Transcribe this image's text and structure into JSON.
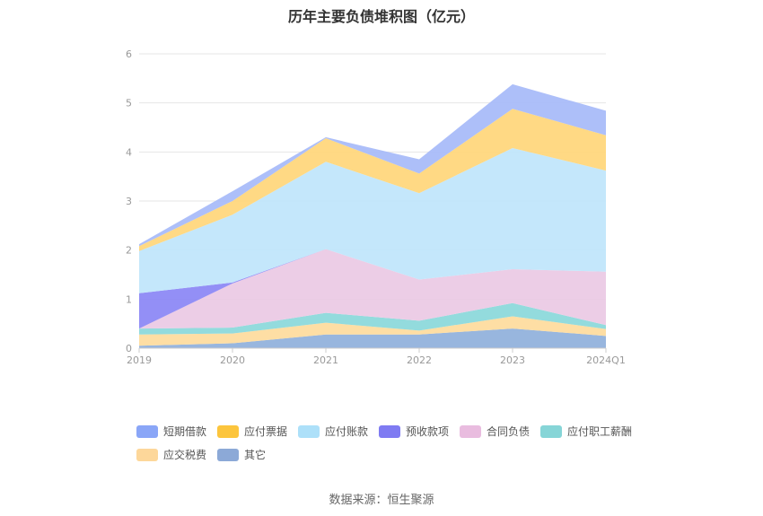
{
  "chart_data": {
    "type": "area",
    "stacked": true,
    "title": "历年主要负债堆积图（亿元）",
    "categories": [
      "2019",
      "2020",
      "2021",
      "2022",
      "2023",
      "2024Q1"
    ],
    "ylim": [
      0,
      6
    ],
    "yticks": [
      "0",
      "1",
      "2",
      "3",
      "4",
      "5",
      "6"
    ],
    "grid": true,
    "legend_position": "bottom",
    "series": [
      {
        "name": "其它",
        "color": "#8fb0db",
        "values": [
          0.05,
          0.1,
          0.28,
          0.28,
          0.4,
          0.25
        ]
      },
      {
        "name": "应交税费",
        "color": "#fedb9c",
        "values": [
          0.23,
          0.2,
          0.24,
          0.08,
          0.25,
          0.14
        ]
      },
      {
        "name": "应付职工薪酬",
        "color": "#8ad8da",
        "values": [
          0.12,
          0.12,
          0.2,
          0.2,
          0.27,
          0.08
        ]
      },
      {
        "name": "合同负债",
        "color": "#eac9e4",
        "values": [
          0.0,
          0.9,
          1.3,
          0.84,
          0.69,
          1.09
        ]
      },
      {
        "name": "预收款项",
        "color": "#8a86f5",
        "values": [
          0.72,
          0.02,
          0.0,
          0.0,
          0.0,
          0.0
        ]
      },
      {
        "name": "应付账款",
        "color": "#bfe5fb",
        "values": [
          0.86,
          1.38,
          1.78,
          1.76,
          2.47,
          2.06
        ]
      },
      {
        "name": "应付票据",
        "color": "#ffd679",
        "values": [
          0.1,
          0.28,
          0.48,
          0.4,
          0.8,
          0.72
        ]
      },
      {
        "name": "短期借款",
        "color": "#a6baf8",
        "values": [
          0.04,
          0.2,
          0.02,
          0.29,
          0.5,
          0.5
        ]
      }
    ],
    "legend": [
      {
        "name": "短期借款",
        "color": "#8aa6f7"
      },
      {
        "name": "应付票据",
        "color": "#fcc53d"
      },
      {
        "name": "应付账款",
        "color": "#ade0f9"
      },
      {
        "name": "预收款项",
        "color": "#7f7bf2"
      },
      {
        "name": "合同负债",
        "color": "#e9bcdf"
      },
      {
        "name": "应付职工薪酬",
        "color": "#86d5d7"
      },
      {
        "name": "应交税费",
        "color": "#fdd79a"
      },
      {
        "name": "其它",
        "color": "#8ca9d7"
      }
    ]
  },
  "source_text": "数据来源：恒生聚源"
}
